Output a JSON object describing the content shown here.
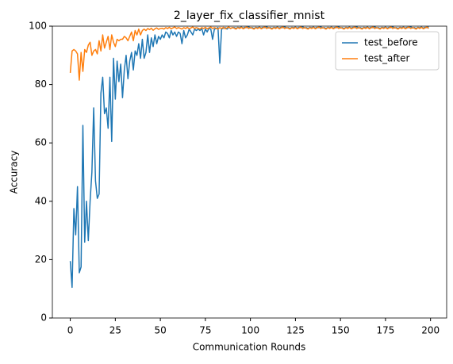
{
  "chart_data": {
    "type": "line",
    "title": "2_layer_fix_classifier_mnist",
    "xlabel": "Communication Rounds",
    "ylabel": "Accuracy",
    "x": [
      0,
      1,
      2,
      3,
      4,
      5,
      6,
      7,
      8,
      9,
      10,
      11,
      12,
      13,
      14,
      15,
      16,
      17,
      18,
      19,
      20,
      21,
      22,
      23,
      24,
      25,
      26,
      27,
      28,
      29,
      30,
      31,
      32,
      33,
      34,
      35,
      36,
      37,
      38,
      39,
      40,
      41,
      42,
      43,
      44,
      45,
      46,
      47,
      48,
      49,
      50,
      51,
      52,
      53,
      54,
      55,
      56,
      57,
      58,
      59,
      60,
      61,
      62,
      63,
      64,
      65,
      66,
      67,
      68,
      69,
      70,
      71,
      72,
      73,
      74,
      75,
      76,
      77,
      78,
      79,
      80,
      81,
      82,
      83,
      84,
      85,
      86,
      87,
      88,
      89,
      90,
      91,
      92,
      93,
      94,
      95,
      96,
      97,
      98,
      99,
      100,
      101,
      102,
      103,
      104,
      105,
      106,
      107,
      108,
      109,
      110,
      111,
      112,
      113,
      114,
      115,
      116,
      117,
      118,
      119,
      120,
      121,
      122,
      123,
      124,
      125,
      126,
      127,
      128,
      129,
      130,
      131,
      132,
      133,
      134,
      135,
      136,
      137,
      138,
      139,
      140,
      141,
      142,
      143,
      144,
      145,
      146,
      147,
      148,
      149,
      150,
      151,
      152,
      153,
      154,
      155,
      156,
      157,
      158,
      159,
      160,
      161,
      162,
      163,
      164,
      165,
      166,
      167,
      168,
      169,
      170,
      171,
      172,
      173,
      174,
      175,
      176,
      177,
      178,
      179,
      180,
      181,
      182,
      183,
      184,
      185,
      186,
      187,
      188,
      189,
      190,
      191,
      192,
      193,
      194,
      195,
      196,
      197,
      198,
      199
    ],
    "series": [
      {
        "name": "test_before",
        "color": "#1f77b4",
        "values": [
          19.5,
          10.5,
          37.5,
          28.5,
          45,
          15.5,
          17.5,
          66,
          26,
          40,
          26.5,
          40,
          50,
          72,
          47,
          41,
          42.5,
          77,
          82.5,
          70,
          72,
          65,
          82.5,
          60.5,
          89,
          75,
          88,
          81,
          87,
          75.5,
          85,
          90,
          82,
          88,
          91,
          85,
          91.5,
          90,
          94,
          89,
          95.5,
          89,
          91,
          97,
          91,
          96,
          93,
          97,
          94,
          96.5,
          95.5,
          97,
          96,
          98,
          97.5,
          96,
          98.5,
          97,
          98,
          96.5,
          98,
          97.5,
          94,
          98.5,
          96,
          97,
          99,
          98,
          97,
          99,
          98.5,
          99,
          98.5,
          99.2,
          97,
          99,
          98,
          99.3,
          99,
          95.5,
          99,
          99.2,
          99.5,
          87.3,
          99,
          99.3,
          99.5,
          99,
          99.6,
          99.2,
          99.5,
          99.5,
          99.2,
          99.6,
          99.4,
          99.7,
          99.3,
          99.6,
          99.5,
          99.8,
          99.4,
          99.5,
          99.2,
          99.6,
          99.4,
          99.7,
          99.3,
          99.6,
          99.5,
          99.8,
          99.4,
          99.5,
          99.2,
          99.6,
          99.4,
          99.7,
          99.3,
          99.6,
          99.5,
          99.8,
          99.4,
          99.5,
          99.2,
          99.6,
          99.4,
          99.7,
          99.3,
          99.6,
          99.5,
          99.8,
          99.4,
          99.5,
          99.2,
          99.6,
          99.4,
          99.7,
          99.3,
          99.6,
          99.5,
          99.8,
          99.4,
          99.5,
          99.2,
          99.6,
          99.4,
          99.7,
          99.3,
          99.6,
          99.5,
          99.8,
          99.4,
          99.5,
          99.2,
          99.6,
          99.4,
          99.7,
          99.3,
          99.6,
          99.5,
          99.8,
          99.4,
          99.5,
          99.2,
          99.6,
          99.4,
          99.7,
          99.3,
          99.6,
          99.5,
          99.8,
          99.4,
          99.5,
          99.2,
          99.6,
          99.4,
          99.7,
          99.3,
          99.6,
          99.5,
          99.8,
          99.4,
          99.5,
          99.2,
          99.6,
          99.4,
          99.7,
          99.3,
          99.6,
          99.5,
          99.8,
          99.4,
          99.5,
          99.2,
          99.6,
          99.4,
          99.7,
          99.3,
          99.6,
          99.5,
          99.8
        ]
      },
      {
        "name": "test_after",
        "color": "#ff7f0e",
        "values": [
          84,
          91.5,
          92,
          91.5,
          90.5,
          81.5,
          91,
          84.5,
          92,
          91,
          93.5,
          94.5,
          90,
          91.5,
          92,
          90.5,
          95,
          91.5,
          97,
          92.5,
          94.5,
          96.5,
          92,
          97,
          94.5,
          93,
          95.5,
          95,
          95.5,
          95.5,
          96.5,
          96,
          95,
          96.5,
          98,
          95,
          98.5,
          97,
          99,
          97,
          98.5,
          99,
          98.5,
          99.2,
          98.8,
          99.3,
          98.6,
          99.1,
          99.4,
          98.9,
          99.2,
          99.3,
          99.0,
          99.5,
          99.2,
          99.6,
          99.1,
          99.4,
          99.7,
          99.2,
          99.5,
          99.3,
          99.0,
          99.5,
          99.2,
          99.6,
          99.1,
          99.4,
          99.7,
          99.2,
          99.5,
          99.3,
          99.0,
          99.5,
          99.2,
          99.6,
          99.1,
          99.4,
          99.7,
          99.2,
          99.5,
          99.3,
          99.0,
          99.5,
          99.2,
          99.6,
          99.1,
          99.4,
          99.7,
          99.2,
          99.5,
          99.3,
          99.0,
          99.5,
          99.2,
          99.6,
          99.1,
          99.4,
          99.7,
          99.2,
          99.5,
          99.3,
          99.0,
          99.5,
          99.2,
          99.6,
          99.1,
          99.4,
          99.7,
          99.2,
          99.5,
          99.3,
          99.0,
          99.5,
          99.2,
          99.6,
          99.1,
          99.4,
          99.7,
          99.2,
          99.5,
          99.3,
          99.0,
          99.5,
          99.2,
          99.6,
          99.1,
          99.4,
          99.7,
          99.2,
          99.5,
          99.3,
          99.0,
          99.5,
          99.2,
          99.6,
          99.1,
          99.4,
          99.7,
          99.2,
          99.5,
          99.3,
          99.0,
          99.5,
          99.2,
          99.6,
          99.1,
          99.4,
          99.7,
          99.2,
          99.5,
          99.3,
          99.0,
          99.5,
          99.2,
          99.6,
          99.1,
          99.4,
          99.7,
          99.2,
          99.5,
          99.3,
          99.0,
          99.5,
          99.2,
          99.6,
          99.1,
          99.4,
          99.7,
          99.2,
          99.5,
          99.3,
          99.0,
          99.5,
          99.2,
          99.6,
          99.1,
          99.4,
          99.7,
          99.2,
          99.5,
          99.3,
          99.0,
          99.5,
          99.2,
          99.6,
          99.1,
          99.4,
          99.7,
          99.2,
          99.5,
          99.3,
          99.0,
          99.5,
          99.2,
          99.6,
          99.1,
          99.4,
          99.7,
          99.2
        ]
      }
    ],
    "xlim": [
      -9.95,
      208.95
    ],
    "xticks": [
      0,
      25,
      50,
      75,
      100,
      125,
      150,
      175,
      200
    ],
    "ylim": [
      0,
      100
    ],
    "yticks": [
      0,
      20,
      40,
      60,
      80,
      100
    ],
    "legend": "upper right",
    "grid": false
  }
}
